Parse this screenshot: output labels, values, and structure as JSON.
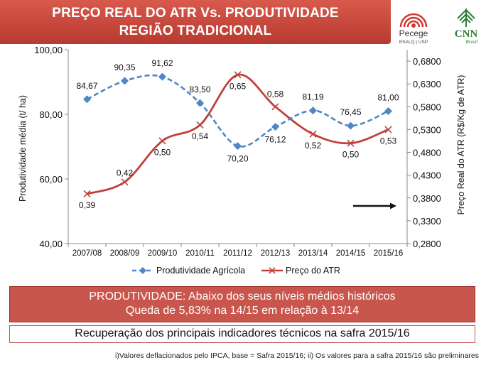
{
  "header": {
    "title_line1": "PREÇO REAL DO ATR Vs. PRODUTIVIDADE",
    "title_line2": "REGIÃO TRADICIONAL",
    "logo_pecege": "Pecege",
    "logo_pecege_sub": "ESALQ | USP",
    "logo_cnn": "CNN",
    "logo_cnn_sub": "Brasil"
  },
  "colors": {
    "banner": "#c9453a",
    "blue": "#4f86c6",
    "red": "#c0413a"
  },
  "chart_data": {
    "type": "line",
    "categories": [
      "2007/08",
      "2008/09",
      "2009/10",
      "2010/11",
      "2011/12",
      "2012/13",
      "2013/14",
      "2014/15",
      "2015/16"
    ],
    "ylabel": "Produtividade média (t/ ha)",
    "ylabel_right": "Preço Real do ATR (R$/Kg de ATR)",
    "ylim": [
      40,
      100
    ],
    "y_ticks": [
      "40,00",
      "60,00",
      "80,00",
      "100,00"
    ],
    "ylim_right": [
      0.28,
      0.705
    ],
    "y_right_ticks": [
      "0,2800",
      "0,3300",
      "0,3800",
      "0,4300",
      "0,4800",
      "0,5300",
      "0,5800",
      "0,6300",
      "0,6800"
    ],
    "series": [
      {
        "name": "Produtividade Agrícola",
        "axis": "left",
        "style": "dashed-diamond",
        "color": "#4f86c6",
        "values": [
          84.67,
          90.35,
          91.62,
          83.5,
          70.2,
          76.12,
          81.19,
          76.45,
          81.0
        ],
        "labels": [
          "84,67",
          "90,35",
          "91,62",
          "83,50",
          "70,20",
          "76,12",
          "81,19",
          "76,45",
          "81,00"
        ]
      },
      {
        "name": "Preço do ATR",
        "axis": "right",
        "style": "solid-x",
        "color": "#c0413a",
        "values": [
          0.389,
          0.415,
          0.505,
          0.54,
          0.65,
          0.58,
          0.52,
          0.5,
          0.53
        ],
        "labels": [
          "0,39",
          "0,42",
          "0,50",
          "0,54",
          "0,65",
          "0,58",
          "0,52",
          "0,50",
          "0,53"
        ]
      }
    ]
  },
  "box1": {
    "line1": "PRODUTIVIDADE: Abaixo dos seus níveis  médios  históricos",
    "line2": "Queda de 5,83% na 14/15 em relação à 13/14"
  },
  "box2": {
    "text": "Recuperação dos principais indicadores técnicos na safra 2015/16"
  },
  "footnote": "i)Valores deflacionados pelo IPCA, base = Safra 2015/16;  ii)  Os valores para a safra 2015/16 são preliminares"
}
